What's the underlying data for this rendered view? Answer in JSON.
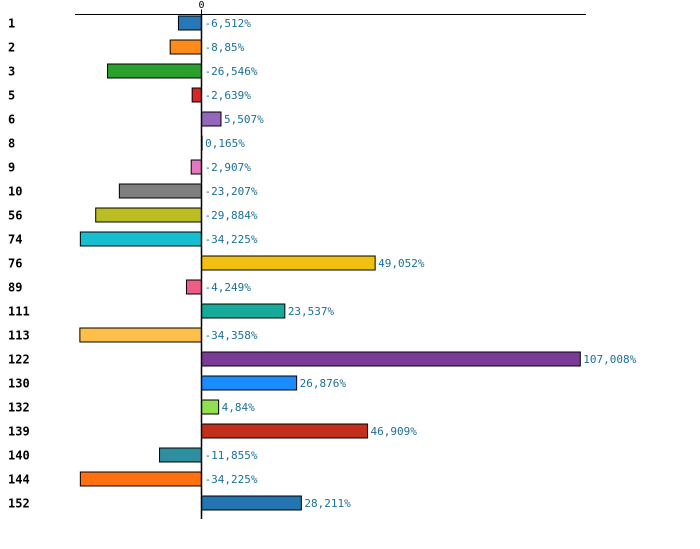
{
  "chart_data": {
    "type": "bar",
    "orientation": "horizontal",
    "title": "",
    "xlabel": "",
    "ylabel": "",
    "xlim": [
      -38,
      115
    ],
    "zero_tick_label": "0",
    "categories": [
      "1",
      "2",
      "3",
      "5",
      "6",
      "8",
      "9",
      "10",
      "56",
      "74",
      "76",
      "89",
      "111",
      "113",
      "122",
      "130",
      "132",
      "139",
      "140",
      "144",
      "152"
    ],
    "values": [
      -6.512,
      -8.85,
      -26.546,
      -2.639,
      5.507,
      0.165,
      -2.907,
      -23.207,
      -29.884,
      -34.225,
      49.052,
      -4.249,
      23.537,
      -34.358,
      107.008,
      26.876,
      4.84,
      46.909,
      -11.855,
      -34.225,
      28.211
    ],
    "value_labels": [
      "-6,512%",
      "-8,85%",
      "-26,546%",
      "-2,639%",
      "5,507%",
      "0,165%",
      "-2,907%",
      "-23,207%",
      "-29,884%",
      "-34,225%",
      "49,052%",
      "-4,249%",
      "23,537%",
      "-34,358%",
      "107,008%",
      "26,876%",
      "4,84%",
      "46,909%",
      "-11,855%",
      "-34,225%",
      "28,211%"
    ],
    "colors": [
      "#2878b8",
      "#ff8c1a",
      "#2ca02c",
      "#d62728",
      "#9467bd",
      "#8c564b",
      "#e377c2",
      "#7f7f7f",
      "#bcbd22",
      "#17becf",
      "#f2c010",
      "#f05c88",
      "#15aa99",
      "#fcbf49",
      "#7a3b98",
      "#1a8cff",
      "#90e050",
      "#c2301c",
      "#2e8fa0",
      "#ff7010",
      "#2275b0"
    ],
    "label_color": "#1a6f9a",
    "grid": false,
    "legend": "none"
  }
}
